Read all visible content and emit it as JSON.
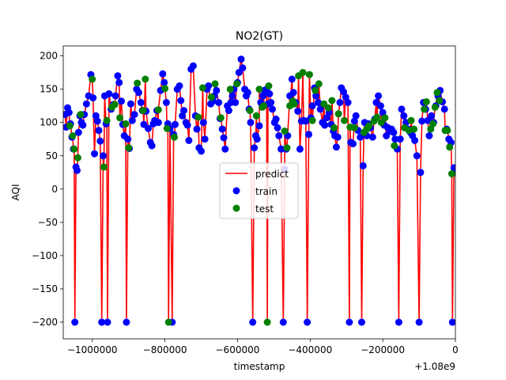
{
  "chart_data": {
    "type": "scatter",
    "title": "NO2(GT)",
    "xlabel": "timestamp",
    "ylabel": "AQI",
    "x_offset_label": "+1.08e9",
    "xlim": [
      -1080000,
      0
    ],
    "ylim": [
      -225,
      215
    ],
    "x_ticks": [
      -1000000,
      -800000,
      -600000,
      -400000,
      -200000,
      0
    ],
    "x_tick_labels": [
      "−1000000",
      "−800000",
      "−600000",
      "−400000",
      "−200000",
      "0"
    ],
    "y_ticks": [
      -200,
      -150,
      -100,
      -50,
      0,
      50,
      100,
      150,
      200
    ],
    "y_tick_labels": [
      "−200",
      "−150",
      "−100",
      "−50",
      "0",
      "50",
      "100",
      "150",
      "200"
    ],
    "legend": {
      "position": "center",
      "entries": [
        {
          "label": "predict",
          "kind": "line",
          "color": "#ff0000"
        },
        {
          "label": "train",
          "kind": "marker",
          "color": "#0000ff"
        },
        {
          "label": "test",
          "kind": "marker",
          "color": "#008000"
        }
      ]
    },
    "series": [
      {
        "name": "train",
        "color": "#0000ff",
        "points": [
          [
            -1075000,
            112
          ],
          [
            -1072000,
            93
          ],
          [
            -1068000,
            122
          ],
          [
            -1064000,
            115
          ],
          [
            -1060000,
            98
          ],
          [
            -1056000,
            78
          ],
          [
            -1052000,
            60
          ],
          [
            -1048000,
            -200
          ],
          [
            -1045000,
            33
          ],
          [
            -1042000,
            28
          ],
          [
            -1038000,
            85
          ],
          [
            -1034000,
            110
          ],
          [
            -1030000,
            100
          ],
          [
            -1026000,
            96
          ],
          [
            -1022000,
            112
          ],
          [
            -1016000,
            128
          ],
          [
            -1010000,
            140
          ],
          [
            -1004000,
            172
          ],
          [
            -998000,
            137
          ],
          [
            -994000,
            53
          ],
          [
            -990000,
            110
          ],
          [
            -986000,
            102
          ],
          [
            -982000,
            88
          ],
          [
            -978000,
            72
          ],
          [
            -974000,
            -200
          ],
          [
            -970000,
            50
          ],
          [
            -966000,
            140
          ],
          [
            -962000,
            98
          ],
          [
            -958000,
            -200
          ],
          [
            -954000,
            143
          ],
          [
            -948000,
            120
          ],
          [
            -942000,
            127
          ],
          [
            -936000,
            140
          ],
          [
            -930000,
            170
          ],
          [
            -926000,
            160
          ],
          [
            -920000,
            132
          ],
          [
            -916000,
            97
          ],
          [
            -912000,
            80
          ],
          [
            -906000,
            -200
          ],
          [
            -902000,
            75
          ],
          [
            -898000,
            61
          ],
          [
            -894000,
            128
          ],
          [
            -890000,
            103
          ],
          [
            -884000,
            112
          ],
          [
            -878000,
            150
          ],
          [
            -872000,
            145
          ],
          [
            -866000,
            130
          ],
          [
            -862000,
            118
          ],
          [
            -858000,
            97
          ],
          [
            -852000,
            117
          ],
          [
            -846000,
            91
          ],
          [
            -840000,
            70
          ],
          [
            -836000,
            65
          ],
          [
            -832000,
            98
          ],
          [
            -828000,
            103
          ],
          [
            -822000,
            118
          ],
          [
            -818000,
            100
          ],
          [
            -812000,
            148
          ],
          [
            -806000,
            173
          ],
          [
            -802000,
            160
          ],
          [
            -796000,
            130
          ],
          [
            -792000,
            98
          ],
          [
            -786000,
            91
          ],
          [
            -780000,
            -200
          ],
          [
            -776000,
            82
          ],
          [
            -772000,
            97
          ],
          [
            -766000,
            150
          ],
          [
            -760000,
            155
          ],
          [
            -756000,
            133
          ],
          [
            -752000,
            110
          ],
          [
            -748000,
            118
          ],
          [
            -742000,
            100
          ],
          [
            -738000,
            96
          ],
          [
            -734000,
            73
          ],
          [
            -728000,
            180
          ],
          [
            -722000,
            185
          ],
          [
            -716000,
            110
          ],
          [
            -712000,
            90
          ],
          [
            -706000,
            62
          ],
          [
            -700000,
            57
          ],
          [
            -694000,
            100
          ],
          [
            -690000,
            75
          ],
          [
            -684000,
            150
          ],
          [
            -680000,
            155
          ],
          [
            -674000,
            128
          ],
          [
            -668000,
            132
          ],
          [
            -664000,
            140
          ],
          [
            -658000,
            148
          ],
          [
            -652000,
            130
          ],
          [
            -648000,
            106
          ],
          [
            -642000,
            90
          ],
          [
            -638000,
            77
          ],
          [
            -634000,
            60
          ],
          [
            -628000,
            125
          ],
          [
            -624000,
            118
          ],
          [
            -618000,
            130
          ],
          [
            -614000,
            140
          ],
          [
            -610000,
            150
          ],
          [
            -606000,
            130
          ],
          [
            -600000,
            160
          ],
          [
            -596000,
            175
          ],
          [
            -590000,
            195
          ],
          [
            -586000,
            182
          ],
          [
            -580000,
            150
          ],
          [
            -576000,
            140
          ],
          [
            -572000,
            145
          ],
          [
            -568000,
            120
          ],
          [
            -564000,
            100
          ],
          [
            -558000,
            -200
          ],
          [
            -554000,
            62
          ],
          [
            -550000,
            80
          ],
          [
            -546000,
            75
          ],
          [
            -540000,
            95
          ],
          [
            -536000,
            130
          ],
          [
            -530000,
            140
          ],
          [
            -526000,
            148
          ],
          [
            -520000,
            150
          ],
          [
            -516000,
            128
          ],
          [
            -512000,
            143
          ],
          [
            -508000,
            130
          ],
          [
            -504000,
            120
          ],
          [
            -498000,
            100
          ],
          [
            -494000,
            105
          ],
          [
            -490000,
            92
          ],
          [
            -486000,
            80
          ],
          [
            -480000,
            60
          ],
          [
            -474000,
            -200
          ],
          [
            -470000,
            30
          ],
          [
            -466000,
            60
          ],
          [
            -462000,
            80
          ],
          [
            -456000,
            140
          ],
          [
            -450000,
            165
          ],
          [
            -446000,
            145
          ],
          [
            -440000,
            130
          ],
          [
            -434000,
            117
          ],
          [
            -428000,
            60
          ],
          [
            -424000,
            102
          ],
          [
            -418000,
            103
          ],
          [
            -412000,
            102
          ],
          [
            -408000,
            -200
          ],
          [
            -404000,
            82
          ],
          [
            -398000,
            107
          ],
          [
            -394000,
            125
          ],
          [
            -388000,
            152
          ],
          [
            -384000,
            140
          ],
          [
            -378000,
            130
          ],
          [
            -372000,
            120
          ],
          [
            -366000,
            100
          ],
          [
            -360000,
            96
          ],
          [
            -354000,
            107
          ],
          [
            -348000,
            115
          ],
          [
            -342000,
            97
          ],
          [
            -336000,
            87
          ],
          [
            -332000,
            80
          ],
          [
            -328000,
            63
          ],
          [
            -324000,
            78
          ],
          [
            -318000,
            130
          ],
          [
            -314000,
            152
          ],
          [
            -308000,
            146
          ],
          [
            -302000,
            138
          ],
          [
            -296000,
            130
          ],
          [
            -292000,
            -200
          ],
          [
            -288000,
            70
          ],
          [
            -282000,
            68
          ],
          [
            -278000,
            102
          ],
          [
            -274000,
            110
          ],
          [
            -268000,
            88
          ],
          [
            -262000,
            78
          ],
          [
            -258000,
            -200
          ],
          [
            -254000,
            35
          ],
          [
            -250000,
            100
          ],
          [
            -244000,
            80
          ],
          [
            -240000,
            98
          ],
          [
            -234000,
            92
          ],
          [
            -228000,
            78
          ],
          [
            -222000,
            105
          ],
          [
            -218000,
            130
          ],
          [
            -212000,
            140
          ],
          [
            -206000,
            125
          ],
          [
            -200000,
            115
          ],
          [
            -196000,
            96
          ],
          [
            -190000,
            80
          ],
          [
            -186000,
            92
          ],
          [
            -180000,
            87
          ],
          [
            -176000,
            90
          ],
          [
            -170000,
            85
          ],
          [
            -166000,
            75
          ],
          [
            -160000,
            60
          ],
          [
            -156000,
            -200
          ],
          [
            -152000,
            75
          ],
          [
            -148000,
            120
          ],
          [
            -142000,
            110
          ],
          [
            -136000,
            100
          ],
          [
            -130000,
            90
          ],
          [
            -124000,
            85
          ],
          [
            -118000,
            80
          ],
          [
            -112000,
            73
          ],
          [
            -106000,
            50
          ],
          [
            -100000,
            -200
          ],
          [
            -96000,
            25
          ],
          [
            -92000,
            102
          ],
          [
            -88000,
            130
          ],
          [
            -82000,
            120
          ],
          [
            -76000,
            103
          ],
          [
            -72000,
            80
          ],
          [
            -66000,
            110
          ],
          [
            -60000,
            100
          ],
          [
            -54000,
            125
          ],
          [
            -48000,
            140
          ],
          [
            -42000,
            148
          ],
          [
            -36000,
            131
          ],
          [
            -30000,
            120
          ],
          [
            -24000,
            90
          ],
          [
            -18000,
            75
          ],
          [
            -12000,
            70
          ],
          [
            -8000,
            -200
          ],
          [
            -4000,
            32
          ],
          [
            -2000,
            25
          ]
        ]
      },
      {
        "name": "test",
        "color": "#008000",
        "points": [
          [
            -1062000,
            95
          ],
          [
            -1054000,
            80
          ],
          [
            -1050000,
            60
          ],
          [
            -1040000,
            47
          ],
          [
            -1032000,
            112
          ],
          [
            -1000000,
            165
          ],
          [
            -968000,
            33
          ],
          [
            -960000,
            103
          ],
          [
            -946000,
            123
          ],
          [
            -938000,
            127
          ],
          [
            -924000,
            107
          ],
          [
            -908000,
            98
          ],
          [
            -900000,
            62
          ],
          [
            -876000,
            159
          ],
          [
            -860000,
            118
          ],
          [
            -854000,
            165
          ],
          [
            -818000,
            119
          ],
          [
            -800000,
            151
          ],
          [
            -794000,
            91
          ],
          [
            -790000,
            -200
          ],
          [
            -774000,
            78
          ],
          [
            -708000,
            108
          ],
          [
            -696000,
            152
          ],
          [
            -672000,
            138
          ],
          [
            -662000,
            158
          ],
          [
            -646000,
            107
          ],
          [
            -620000,
            150
          ],
          [
            -602000,
            158
          ],
          [
            -566000,
            118
          ],
          [
            -548000,
            110
          ],
          [
            -540000,
            150
          ],
          [
            -532000,
            123
          ],
          [
            -528000,
            125
          ],
          [
            -518000,
            -200
          ],
          [
            -514000,
            155
          ],
          [
            -470000,
            87
          ],
          [
            -464000,
            62
          ],
          [
            -456000,
            125
          ],
          [
            -448000,
            132
          ],
          [
            -444000,
            128
          ],
          [
            -432000,
            170
          ],
          [
            -420000,
            175
          ],
          [
            -402000,
            172
          ],
          [
            -394000,
            103
          ],
          [
            -386000,
            148
          ],
          [
            -376000,
            158
          ],
          [
            -362000,
            128
          ],
          [
            -350000,
            122
          ],
          [
            -340000,
            133
          ],
          [
            -334000,
            92
          ],
          [
            -322000,
            113
          ],
          [
            -306000,
            103
          ],
          [
            -290000,
            93
          ],
          [
            -278000,
            92
          ],
          [
            -252000,
            85
          ],
          [
            -244000,
            90
          ],
          [
            -238000,
            95
          ],
          [
            -224000,
            102
          ],
          [
            -216000,
            108
          ],
          [
            -204000,
            100
          ],
          [
            -194000,
            107
          ],
          [
            -168000,
            65
          ],
          [
            -140000,
            92
          ],
          [
            -128000,
            88
          ],
          [
            -122000,
            103
          ],
          [
            -114000,
            90
          ],
          [
            -86000,
            120
          ],
          [
            -80000,
            131
          ],
          [
            -68000,
            90
          ],
          [
            -62000,
            98
          ],
          [
            -56000,
            123
          ],
          [
            -50000,
            145
          ],
          [
            -44000,
            133
          ],
          [
            -28000,
            88
          ],
          [
            -22000,
            88
          ],
          [
            -16000,
            63
          ],
          [
            -10000,
            23
          ]
        ]
      }
    ]
  }
}
